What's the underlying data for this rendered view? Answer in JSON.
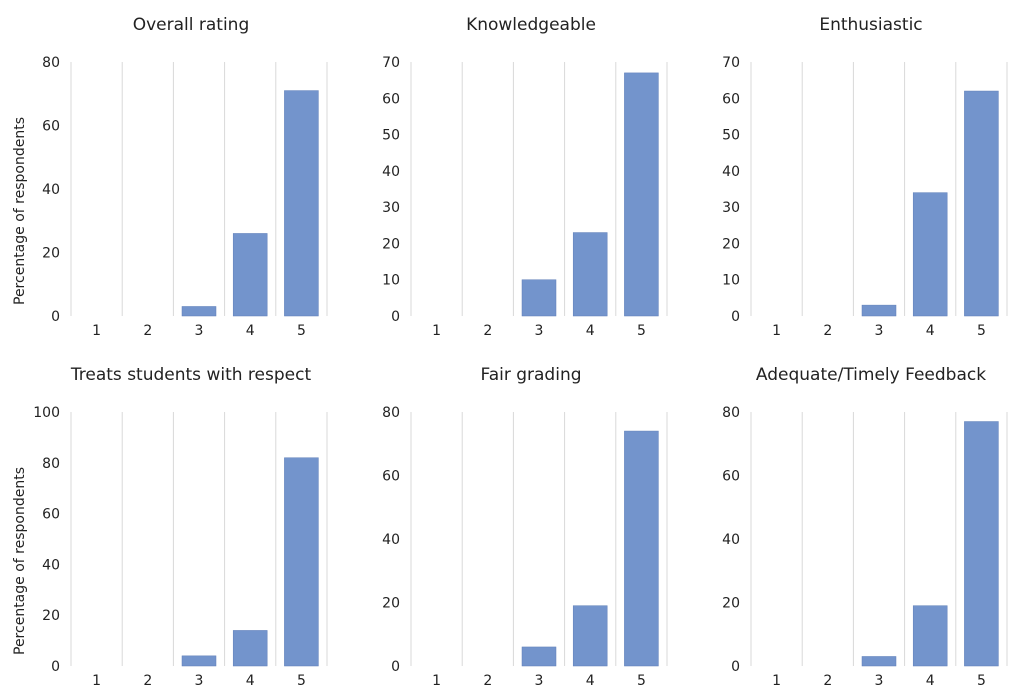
{
  "colors": {
    "bar": "#7394cc",
    "grid": "#d9d9d9"
  },
  "chart_data": [
    {
      "type": "bar",
      "title": "Overall rating",
      "ylabel": "Percentage of respondents",
      "categories": [
        "1",
        "2",
        "3",
        "4",
        "5"
      ],
      "values": [
        0,
        0,
        3,
        26,
        71
      ],
      "ylim": [
        0,
        80
      ],
      "yticks": [
        0,
        20,
        40,
        60,
        80
      ],
      "grid": "vertical"
    },
    {
      "type": "bar",
      "title": "Knowledgeable",
      "ylabel": "",
      "categories": [
        "1",
        "2",
        "3",
        "4",
        "5"
      ],
      "values": [
        0,
        0,
        10,
        23,
        67
      ],
      "ylim": [
        0,
        70
      ],
      "yticks": [
        0,
        10,
        20,
        30,
        40,
        50,
        60,
        70
      ],
      "grid": "vertical"
    },
    {
      "type": "bar",
      "title": "Enthusiastic",
      "ylabel": "",
      "categories": [
        "1",
        "2",
        "3",
        "4",
        "5"
      ],
      "values": [
        0,
        0,
        3,
        34,
        62
      ],
      "ylim": [
        0,
        70
      ],
      "yticks": [
        0,
        10,
        20,
        30,
        40,
        50,
        60,
        70
      ],
      "grid": "vertical"
    },
    {
      "type": "bar",
      "title": "Treats students with respect",
      "ylabel": "Percentage of respondents",
      "categories": [
        "1",
        "2",
        "3",
        "4",
        "5"
      ],
      "values": [
        0,
        0,
        4,
        14,
        82
      ],
      "ylim": [
        0,
        100
      ],
      "yticks": [
        0,
        20,
        40,
        60,
        80,
        100
      ],
      "grid": "vertical"
    },
    {
      "type": "bar",
      "title": "Fair grading",
      "ylabel": "",
      "categories": [
        "1",
        "2",
        "3",
        "4",
        "5"
      ],
      "values": [
        0,
        0,
        6,
        19,
        74
      ],
      "ylim": [
        0,
        80
      ],
      "yticks": [
        0,
        20,
        40,
        60,
        80
      ],
      "grid": "vertical"
    },
    {
      "type": "bar",
      "title": "Adequate/Timely Feedback",
      "ylabel": "",
      "categories": [
        "1",
        "2",
        "3",
        "4",
        "5"
      ],
      "values": [
        0,
        0,
        3,
        19,
        77
      ],
      "ylim": [
        0,
        80
      ],
      "yticks": [
        0,
        20,
        40,
        60,
        80
      ],
      "grid": "vertical"
    }
  ]
}
